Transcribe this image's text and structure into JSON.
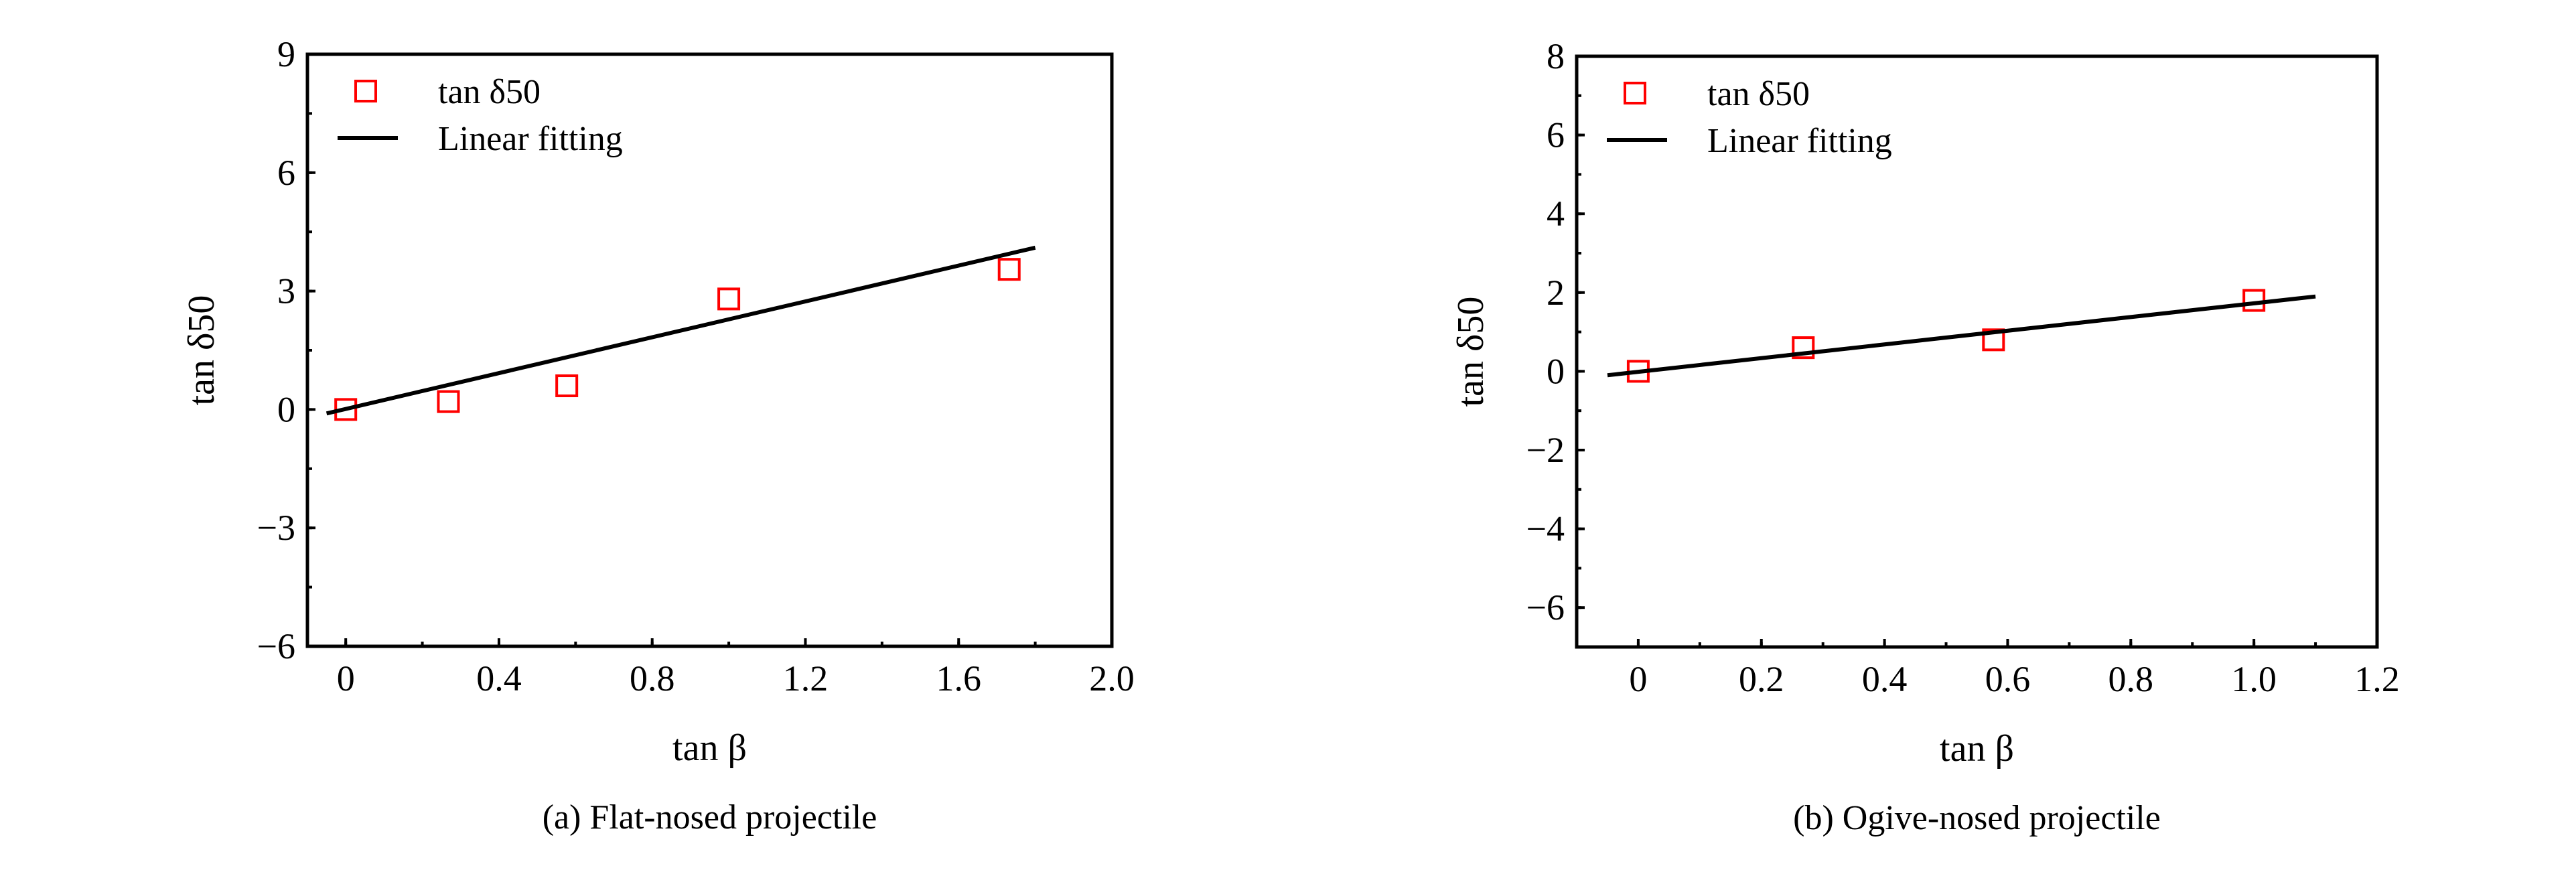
{
  "chart_data": [
    {
      "type": "scatter",
      "caption": "(a) Flat-nosed projectile",
      "xlabel": "tan β",
      "ylabel": "tan δ50",
      "xlim": [
        -0.1,
        2.0
      ],
      "ylim": [
        -6,
        9
      ],
      "xticks": [
        0,
        0.4,
        0.8,
        1.2,
        1.6,
        2.0
      ],
      "xtick_labels": [
        "0",
        "0.4",
        "0.8",
        "1.2",
        "1.6",
        "2.0"
      ],
      "yticks": [
        -6,
        -3,
        0,
        3,
        6,
        9
      ],
      "ytick_labels": [
        "−6",
        "−3",
        "0",
        "3",
        "6",
        "9"
      ],
      "x_minor_step": 0.2,
      "y_minor_step": 1.5,
      "legend": {
        "placement": "top-left",
        "entries": [
          "tan δ50",
          "Linear fitting"
        ]
      },
      "series": [
        {
          "name": "tan δ50",
          "kind": "marker-square-open",
          "color": "#ff0000",
          "x": [
            0,
            0.268,
            0.577,
            1.0,
            1.732
          ],
          "y": [
            0.0,
            0.2,
            0.6,
            2.8,
            3.55
          ]
        },
        {
          "name": "Linear fitting",
          "kind": "line",
          "color": "#000000",
          "x": [
            -0.05,
            1.8
          ],
          "y": [
            -0.1,
            4.1
          ]
        }
      ]
    },
    {
      "type": "scatter",
      "caption": "(b) Ogive-nosed projectile",
      "xlabel": "tan β",
      "ylabel": "tan δ50",
      "xlim": [
        -0.1,
        1.2
      ],
      "ylim": [
        -7,
        8
      ],
      "xticks": [
        0,
        0.2,
        0.4,
        0.6,
        0.8,
        1.0,
        1.2
      ],
      "xtick_labels": [
        "0",
        "0.2",
        "0.4",
        "0.6",
        "0.8",
        "1.0",
        "1.2"
      ],
      "yticks": [
        -6,
        -4,
        -2,
        0,
        2,
        4,
        6,
        8
      ],
      "ytick_labels": [
        "−6",
        "−4",
        "−2",
        "0",
        "2",
        "4",
        "6",
        "8"
      ],
      "x_minor_step": 0.1,
      "y_minor_step": 1,
      "legend": {
        "placement": "top-left",
        "entries": [
          "tan δ50",
          "Linear fitting"
        ]
      },
      "series": [
        {
          "name": "tan δ50",
          "kind": "marker-square-open",
          "color": "#ff0000",
          "x": [
            0,
            0.268,
            0.577,
            1.0
          ],
          "y": [
            0.0,
            0.6,
            0.8,
            1.8
          ]
        },
        {
          "name": "Linear fitting",
          "kind": "line",
          "color": "#000000",
          "x": [
            -0.05,
            1.1
          ],
          "y": [
            -0.1,
            1.9
          ]
        }
      ]
    }
  ]
}
